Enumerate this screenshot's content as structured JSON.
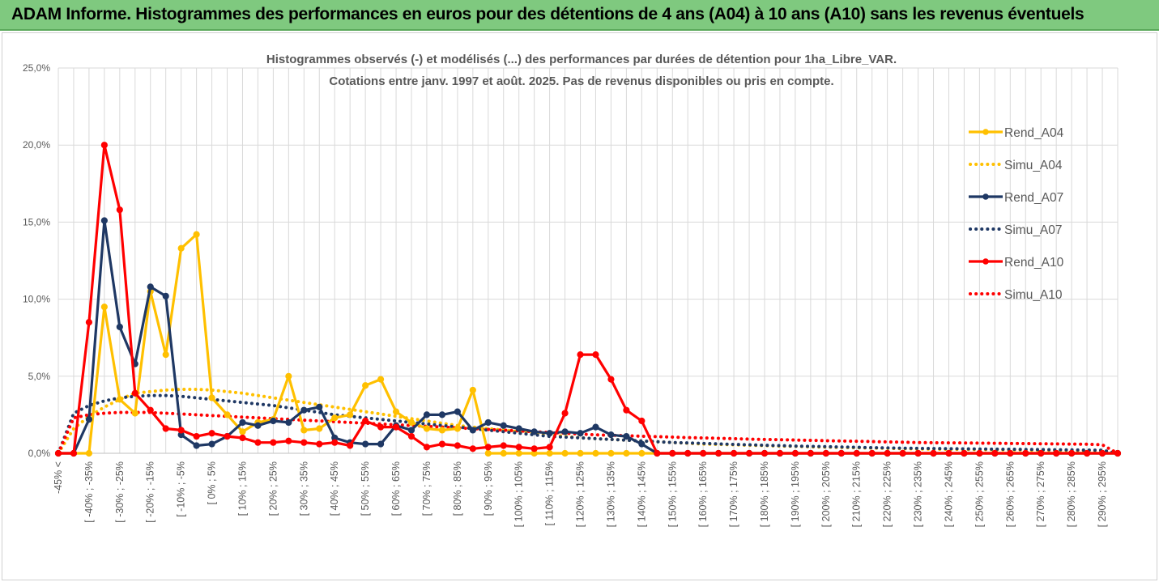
{
  "banner": {
    "title": "ADAM Informe. Histogrammes des performances en euros pour des détentions de 4 ans (A04) à 10 ans (A10) sans les revenus éventuels"
  },
  "colors": {
    "banner_bg": "#7fc97f",
    "gold": "#ffc000",
    "navy": "#1f3864",
    "red": "#ff0000",
    "grid": "#d9d9d9",
    "text": "#595959"
  },
  "chart_data": {
    "type": "line",
    "title_line1": "Histogrammes observés (-) et modélisés (...) des performances par durées de détention pour 1ha_Libre_VAR.",
    "title_line2": "Cotations entre janv. 1997 et août. 2025. Pas de revenus disponibles ou pris en compte.",
    "ylim": [
      0,
      25
    ],
    "y_ticks": [
      "0,0%",
      "5,0%",
      "10,0%",
      "15,0%",
      "20,0%",
      "25,0%"
    ],
    "grid": "vertical and horizontal",
    "legend_position": "right",
    "x_labels": [
      "-45% <",
      "[ -40% ; -35%",
      "[ -30% ; -25%",
      "[ -20% ; -15%",
      "[ -10% ; -5%",
      "[ 0% ; 5%",
      "[ 10% ; 15%",
      "[ 20% ; 25%",
      "[ 30% ; 35%",
      "[ 40% ; 45%",
      "[ 50% ; 55%",
      "[ 60% ; 65%",
      "[ 70% ; 75%",
      "[ 80% ; 85%",
      "[ 90% ; 95%",
      "[ 100% ; 105%",
      "[ 110% ; 115%",
      "[ 120% ; 125%",
      "[ 130% ; 135%",
      "[ 140% ; 145%",
      "[ 150% ; 155%",
      "[ 160% ; 165%",
      "[ 170% ; 175%",
      "[ 180% ; 185%",
      "[ 190% ; 195%",
      "[ 200% ; 205%",
      "[ 210% ; 215%",
      "[ 220% ; 225%",
      "[ 230% ; 235%",
      "[ 240% ; 245%",
      "[ 250% ; 255%",
      "[ 260% ; 265%",
      "[ 270% ; 275%",
      "[ 280% ; 285%",
      "[ 290% ; 295%"
    ],
    "series": [
      {
        "name": "Rend_A04",
        "style": "solid",
        "color": "#ffc000",
        "values": [
          0,
          0,
          0,
          9.5,
          3.5,
          2.6,
          10.5,
          6.4,
          13.3,
          14.2,
          3.6,
          2.5,
          1.4,
          2.0,
          2.2,
          5.0,
          1.5,
          1.6,
          2.3,
          2.5,
          4.4,
          4.8,
          2.7,
          2.0,
          1.6,
          1.5,
          1.6,
          4.1,
          0,
          0,
          0,
          0,
          0,
          0,
          0,
          0,
          0,
          0,
          0,
          0,
          0,
          0,
          0,
          0,
          0,
          0,
          0,
          0,
          0,
          0,
          0,
          0,
          0,
          0,
          0,
          0,
          0,
          0,
          0,
          0,
          0,
          0,
          0,
          0,
          0,
          0,
          0,
          0,
          0,
          0
        ]
      },
      {
        "name": "Simu_A04",
        "style": "dotted",
        "color": "#ffc000",
        "values": [
          0,
          1.6,
          2.4,
          3.0,
          3.5,
          3.9,
          4.0,
          4.1,
          4.15,
          4.15,
          4.1,
          4.0,
          3.9,
          3.75,
          3.6,
          3.45,
          3.3,
          3.15,
          3.0,
          2.85,
          2.7,
          2.55,
          2.4,
          2.25,
          2.1,
          1.95,
          1.8,
          1.7,
          1.6,
          1.5,
          1.4,
          1.3,
          1.2,
          1.1,
          1.0,
          0.95,
          0.9,
          0.85,
          0.8,
          0.75,
          0.7,
          0.65,
          0.6,
          0.58,
          0.55,
          0.52,
          0.5,
          0.47,
          0.45,
          0.42,
          0.4,
          0.38,
          0.36,
          0.34,
          0.32,
          0.3,
          0.28,
          0.27,
          0.26,
          0.25,
          0.24,
          0.23,
          0.22,
          0.21,
          0.2,
          0.19,
          0.18,
          0.17,
          0.16,
          0
        ]
      },
      {
        "name": "Rend_A07",
        "style": "solid",
        "color": "#1f3864",
        "values": [
          0,
          0,
          2.2,
          15.1,
          8.2,
          5.8,
          10.8,
          10.2,
          1.2,
          0.5,
          0.6,
          1.1,
          2.0,
          1.8,
          2.1,
          2.0,
          2.8,
          3.0,
          1.0,
          0.7,
          0.6,
          0.6,
          1.8,
          1.5,
          2.5,
          2.5,
          2.7,
          1.5,
          2.0,
          1.8,
          1.6,
          1.4,
          1.3,
          1.4,
          1.3,
          1.7,
          1.2,
          1.1,
          0.6,
          0,
          0,
          0,
          0,
          0,
          0,
          0,
          0,
          0,
          0,
          0,
          0,
          0,
          0,
          0,
          0,
          0,
          0,
          0,
          0,
          0,
          0,
          0,
          0,
          0,
          0,
          0,
          0,
          0,
          0,
          0
        ]
      },
      {
        "name": "Simu_A07",
        "style": "dotted",
        "color": "#1f3864",
        "values": [
          0,
          2.6,
          3.1,
          3.4,
          3.6,
          3.7,
          3.75,
          3.75,
          3.7,
          3.6,
          3.5,
          3.4,
          3.3,
          3.2,
          3.1,
          2.95,
          2.8,
          2.65,
          2.5,
          2.4,
          2.3,
          2.2,
          2.1,
          2.0,
          1.9,
          1.8,
          1.7,
          1.6,
          1.5,
          1.4,
          1.3,
          1.2,
          1.1,
          1.05,
          1.0,
          0.95,
          0.9,
          0.85,
          0.8,
          0.75,
          0.7,
          0.67,
          0.64,
          0.61,
          0.58,
          0.55,
          0.52,
          0.5,
          0.47,
          0.45,
          0.43,
          0.41,
          0.39,
          0.37,
          0.35,
          0.33,
          0.32,
          0.31,
          0.3,
          0.29,
          0.28,
          0.27,
          0.26,
          0.25,
          0.24,
          0.23,
          0.22,
          0.21,
          0.2,
          0
        ]
      },
      {
        "name": "Rend_A10",
        "style": "solid",
        "color": "#ff0000",
        "values": [
          0,
          0,
          8.5,
          20.0,
          15.8,
          3.9,
          2.8,
          1.6,
          1.5,
          1.1,
          1.3,
          1.1,
          1.0,
          0.7,
          0.7,
          0.8,
          0.7,
          0.6,
          0.7,
          0.5,
          2.1,
          1.7,
          1.7,
          1.1,
          0.4,
          0.6,
          0.5,
          0.3,
          0.4,
          0.5,
          0.4,
          0.3,
          0.4,
          2.6,
          6.4,
          6.4,
          4.8,
          2.8,
          2.1,
          0,
          0,
          0,
          0,
          0,
          0,
          0,
          0,
          0,
          0,
          0,
          0,
          0,
          0,
          0,
          0,
          0,
          0,
          0,
          0,
          0,
          0,
          0,
          0,
          0,
          0,
          0,
          0,
          0,
          0,
          0
        ]
      },
      {
        "name": "Simu_A10",
        "style": "dotted",
        "color": "#ff0000",
        "values": [
          0,
          2.3,
          2.5,
          2.6,
          2.65,
          2.65,
          2.65,
          2.6,
          2.55,
          2.5,
          2.45,
          2.4,
          2.35,
          2.3,
          2.25,
          2.2,
          2.15,
          2.1,
          2.05,
          2.0,
          1.95,
          1.9,
          1.85,
          1.8,
          1.75,
          1.7,
          1.65,
          1.6,
          1.55,
          1.5,
          1.45,
          1.4,
          1.35,
          1.3,
          1.25,
          1.2,
          1.17,
          1.14,
          1.11,
          1.08,
          1.05,
          1.02,
          1.0,
          0.97,
          0.95,
          0.92,
          0.9,
          0.88,
          0.86,
          0.84,
          0.82,
          0.8,
          0.78,
          0.76,
          0.74,
          0.72,
          0.7,
          0.69,
          0.68,
          0.67,
          0.66,
          0.65,
          0.64,
          0.63,
          0.62,
          0.61,
          0.6,
          0.59,
          0.55,
          0
        ]
      }
    ]
  }
}
